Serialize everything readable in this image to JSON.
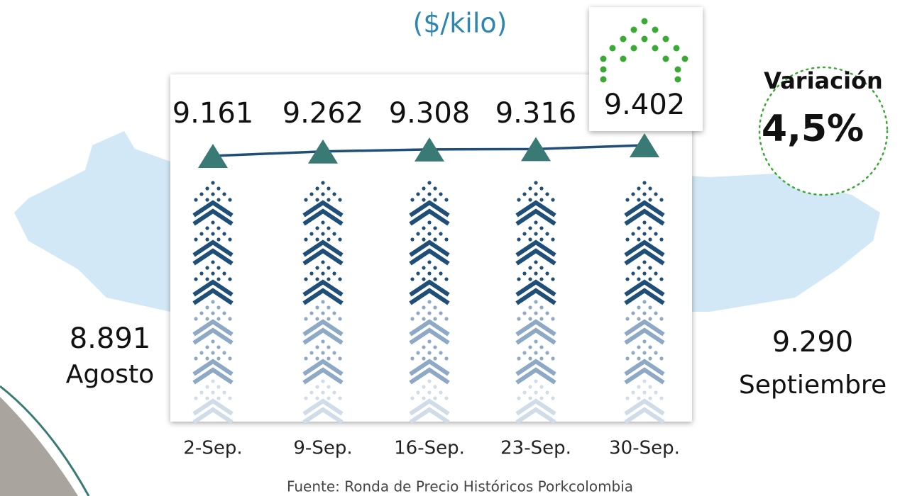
{
  "chart_data": {
    "type": "line",
    "subtitle": "($/kilo)",
    "categories": [
      "2-Sep.",
      "9-Sep.",
      "16-Sep.",
      "23-Sep.",
      "30-Sep."
    ],
    "values": [
      9161,
      9262,
      9308,
      9316,
      9402
    ],
    "value_labels": [
      "9.161",
      "9.262",
      "9.308",
      "9.316",
      "9.402"
    ],
    "color": "#1f4e79",
    "marker_color": "#3a7a74",
    "previous": {
      "value": "8.891",
      "label": "Agosto"
    },
    "current": {
      "value": "9.290",
      "label": "Septiembre"
    },
    "variation": {
      "label": "Variación",
      "value": "4,5%"
    },
    "source": "Fuente: Ronda de Precio Históricos Porkcolombia"
  }
}
